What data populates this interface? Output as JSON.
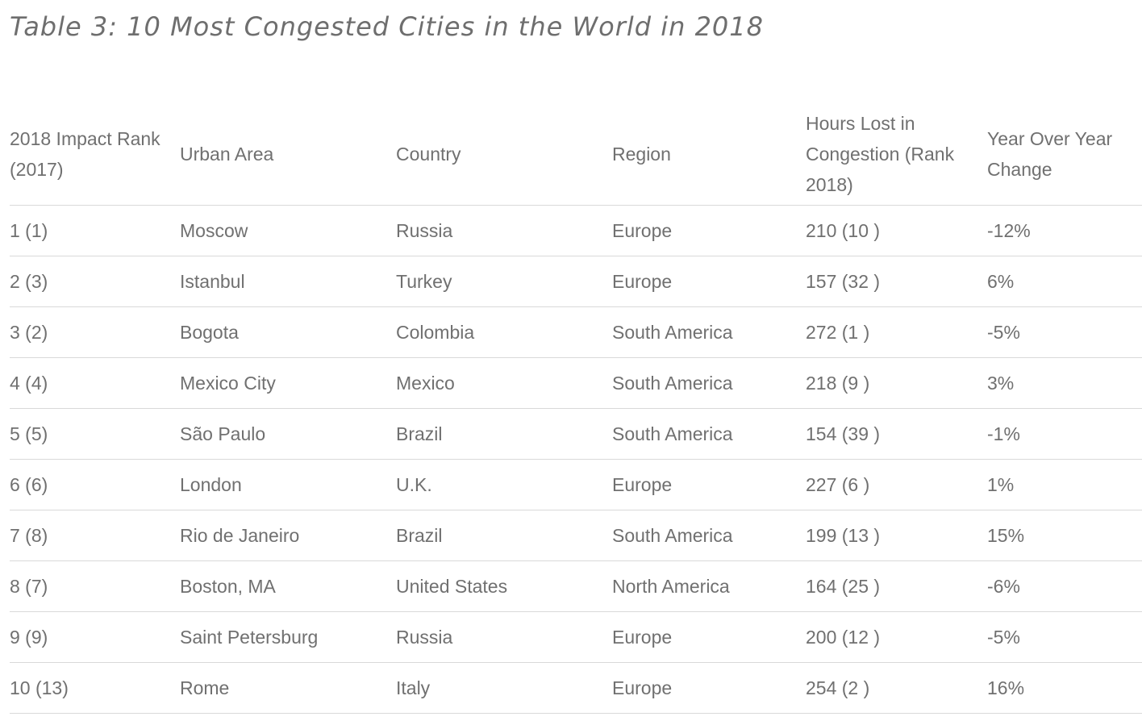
{
  "chart_data": {
    "type": "table",
    "title": "Table 3: 10 Most Congested Cities in the World in 2018",
    "columns": [
      "2018 Impact Rank (2017)",
      "Urban Area",
      "Country",
      "Region",
      "Hours Lost in Congestion (Rank 2018)",
      "Year Over Year Change"
    ],
    "rows": [
      [
        "1 (1)",
        "Moscow",
        "Russia",
        "Europe",
        "210 (10 )",
        "-12%"
      ],
      [
        "2 (3)",
        "Istanbul",
        "Turkey",
        "Europe",
        "157 (32 )",
        "6%"
      ],
      [
        "3 (2)",
        "Bogota",
        "Colombia",
        "South America",
        "272 (1 )",
        "-5%"
      ],
      [
        "4 (4)",
        "Mexico City",
        "Mexico",
        "South America",
        "218 (9 )",
        "3%"
      ],
      [
        "5 (5)",
        "São Paulo",
        "Brazil",
        "South America",
        "154 (39 )",
        "-1%"
      ],
      [
        "6 (6)",
        "London",
        "U.K.",
        "Europe",
        "227 (6 )",
        "1%"
      ],
      [
        "7 (8)",
        "Rio de Janeiro",
        "Brazil",
        "South America",
        "199 (13 )",
        "15%"
      ],
      [
        "8 (7)",
        "Boston, MA",
        "United States",
        "North America",
        "164 (25 )",
        "-6%"
      ],
      [
        "9 (9)",
        "Saint Petersburg",
        "Russia",
        "Europe",
        "200 (12 )",
        "-5%"
      ],
      [
        "10 (13)",
        "Rome",
        "Italy",
        "Europe",
        "254 (2 )",
        "16%"
      ]
    ]
  }
}
